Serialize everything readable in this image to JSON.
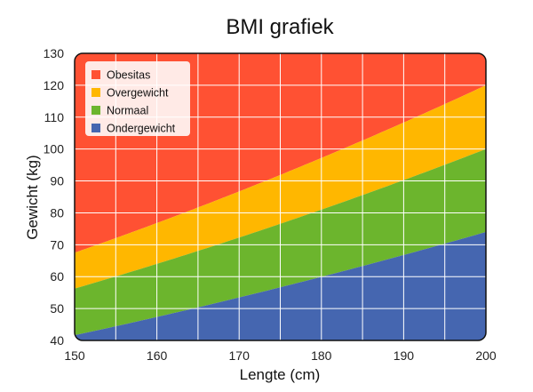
{
  "chart_data": {
    "type": "area",
    "title": "BMI grafiek",
    "xlabel": "Lengte (cm)",
    "ylabel": "Gewicht (kg)",
    "xlim": [
      150,
      200
    ],
    "ylim": [
      40,
      130
    ],
    "x_ticks": [
      150,
      160,
      170,
      180,
      190,
      200
    ],
    "y_ticks": [
      40,
      50,
      60,
      70,
      80,
      90,
      100,
      110,
      120,
      130
    ],
    "grid": true,
    "x_step": 5,
    "bmi_thresholds": [
      18.5,
      25,
      30
    ],
    "legend_position": "top-left",
    "series": [
      {
        "name": "Obesitas",
        "bmi_range": [
          30,
          null
        ],
        "color": "#ff5133"
      },
      {
        "name": "Overgewicht",
        "bmi_range": [
          25,
          30
        ],
        "color": "#ffb700"
      },
      {
        "name": "Normaal",
        "bmi_range": [
          18.5,
          25
        ],
        "color": "#6cb52d"
      },
      {
        "name": "Ondergewicht",
        "bmi_range": [
          null,
          18.5
        ],
        "color": "#4566b0"
      }
    ]
  }
}
